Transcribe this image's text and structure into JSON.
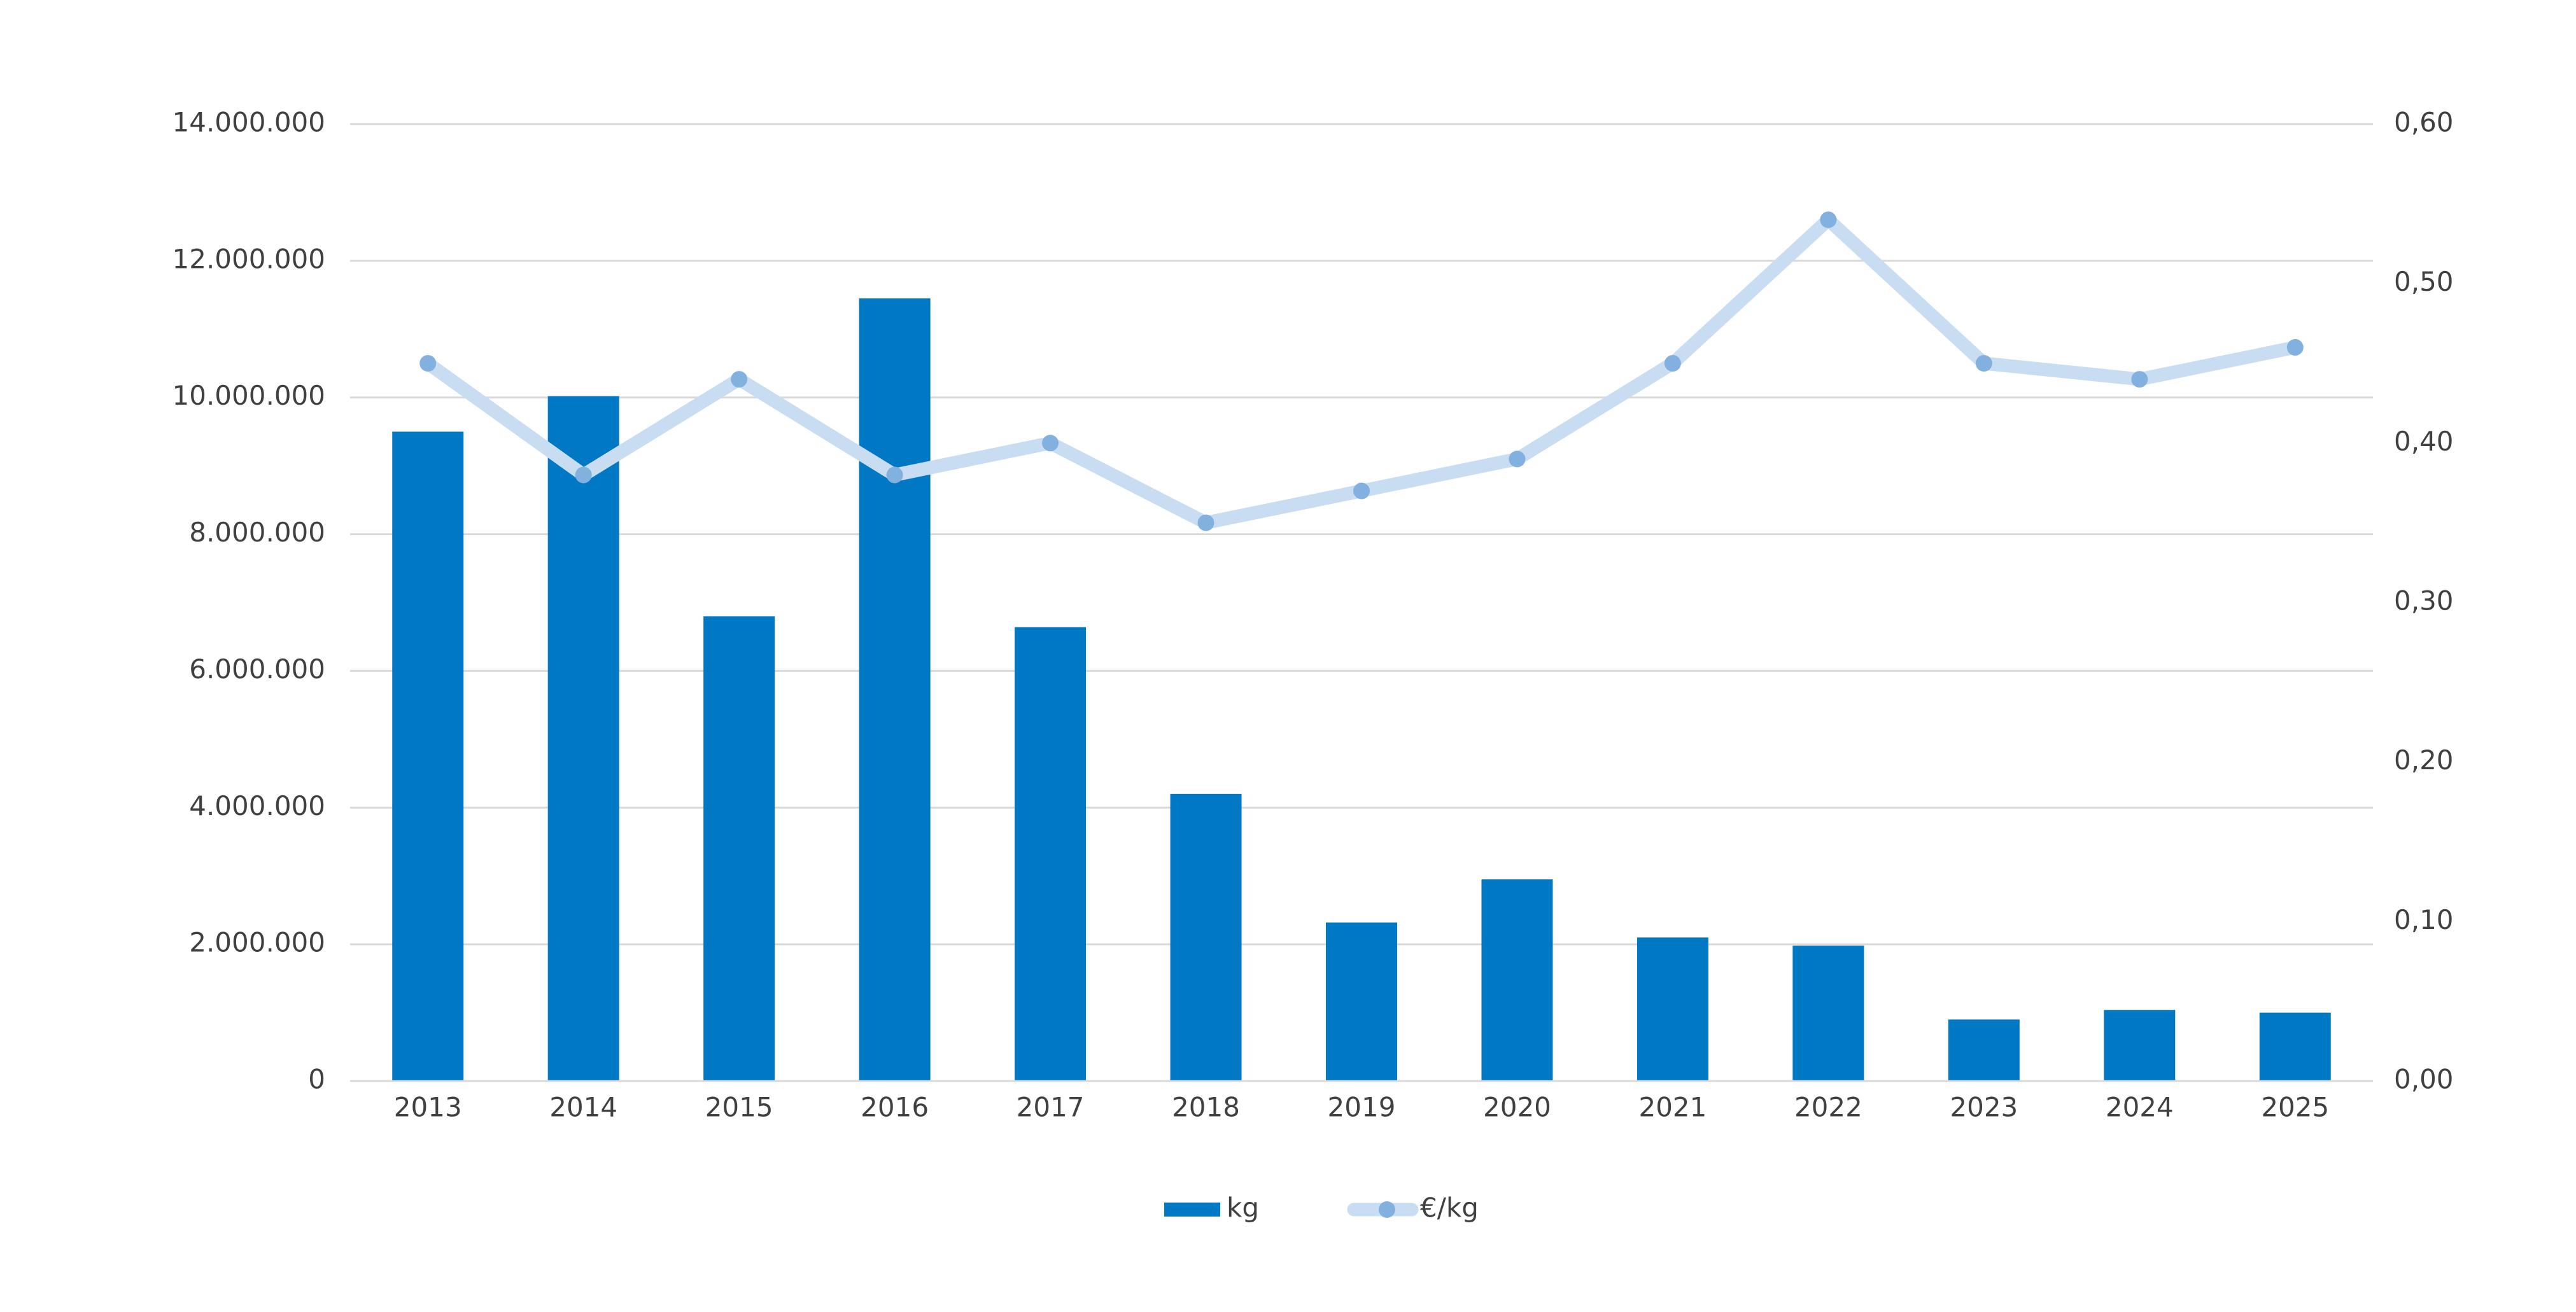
{
  "chart_data": {
    "type": "bar-line",
    "categories": [
      "2013",
      "2014",
      "2015",
      "2016",
      "2017",
      "2018",
      "2019",
      "2020",
      "2021",
      "2022",
      "2023",
      "2024",
      "2025"
    ],
    "series": [
      {
        "name": "kg",
        "type": "bar",
        "color": "#0078c4",
        "values": [
          9500000,
          10020000,
          6800000,
          11450000,
          6640000,
          4200000,
          2320000,
          2950000,
          2100000,
          1980000,
          900000,
          1040000,
          1000000
        ]
      },
      {
        "name": "€/kg",
        "type": "line",
        "axis": "y2",
        "color": "#c9ddf2",
        "marker_color": "#82b1e0",
        "values": [
          0.45,
          0.38,
          0.44,
          0.38,
          0.4,
          0.35,
          0.37,
          0.39,
          0.45,
          0.54,
          0.45,
          0.44,
          0.46
        ]
      }
    ],
    "ylim": [
      0,
      14000000
    ],
    "yticks": [
      0,
      {
        "value": 2000000,
        "label": "2.000.000"
      },
      {
        "value": 4000000,
        "label": "4.000.000"
      },
      {
        "value": 6000000,
        "label": "6.000.000"
      },
      {
        "value": 8000000,
        "label": "8.000.000"
      },
      {
        "value": 10000000,
        "label": "10.000.000"
      },
      {
        "value": 12000000,
        "label": "12.000.000"
      },
      {
        "value": 14000000,
        "label": "14.000.000"
      }
    ],
    "y2lim": [
      0,
      0.6
    ],
    "y2ticks": [
      {
        "value": 0,
        "label": "0,00"
      },
      {
        "value": 0.1,
        "label": "0,10"
      },
      {
        "value": 0.2,
        "label": "0,20"
      },
      {
        "value": 0.3,
        "label": "0,30"
      },
      {
        "value": 0.4,
        "label": "0,40"
      },
      {
        "value": 0.5,
        "label": "0,50"
      },
      {
        "value": 0.6,
        "label": "0,60"
      }
    ],
    "grid": true,
    "legend": "bottom"
  }
}
